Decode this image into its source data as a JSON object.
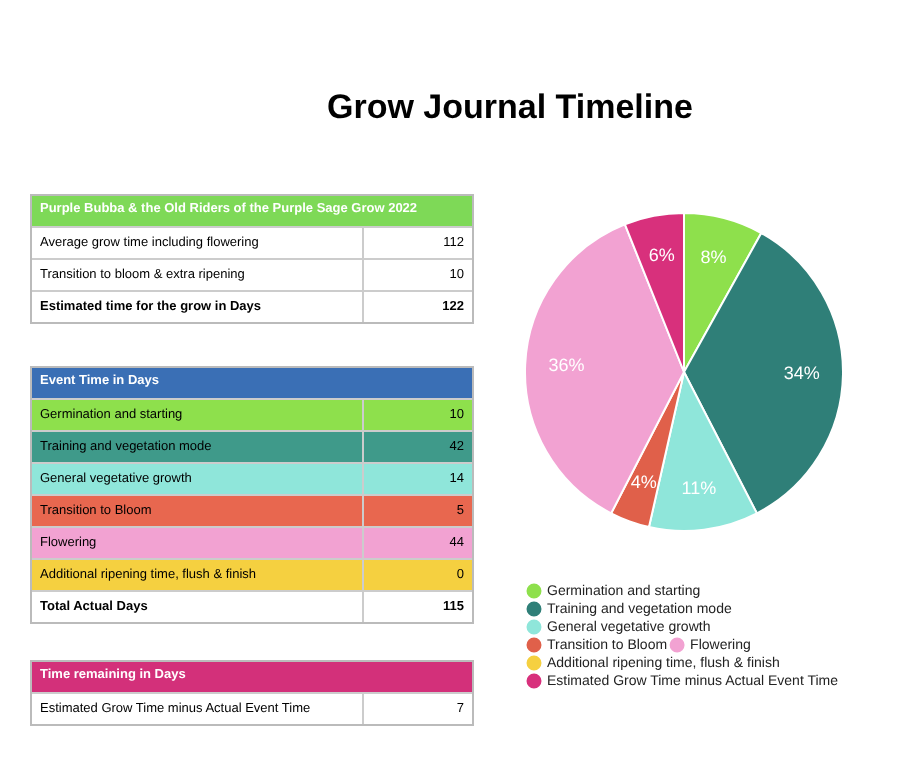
{
  "chart_data": [
    {
      "type": "pie",
      "title": "Grow Journal Timeline",
      "categories": [
        "Germination and starting",
        "Training and vegetation mode",
        "General vegetative growth",
        "Transition to Bloom",
        "Flowering",
        "Additional ripening time, flush & finish",
        "Estimated Grow Time minus Actual Event Time"
      ],
      "values": [
        8,
        34,
        11,
        4,
        36,
        0,
        6
      ],
      "colors": [
        "#8ee04c",
        "#2f7f78",
        "#8fe6da",
        "#e0604a",
        "#f2a2d2",
        "#f5d040",
        "#d8307c"
      ],
      "value_labels": [
        "8%",
        "34%",
        "11%",
        "4%",
        "36%",
        null,
        "6%"
      ],
      "legend": "bottom"
    },
    {
      "type": "other",
      "title": "Purple Bubba & the Old Riders of the Purple Sage Grow 2022",
      "color": "#7ed957",
      "categories": [
        "Average grow time including flowering",
        "Transition to bloom & extra ripening",
        "Estimated time for the grow in Days"
      ],
      "values": [
        112,
        10,
        122
      ],
      "data_labels": true,
      "colors": [
        "#ffffff",
        "#ffffff",
        "#ffffff"
      ]
    },
    {
      "type": "other",
      "title": "Event Time in Days",
      "color": "#3a6fb5",
      "categories": [
        "Germination and starting",
        "Training and vegetation mode",
        "General vegetative growth",
        "Transition to Bloom",
        "Flowering",
        "Additional ripening time, flush & finish",
        "Total Actual Days"
      ],
      "values": [
        10,
        42,
        14,
        5,
        44,
        0,
        115
      ],
      "data_labels": true,
      "colors": [
        "#8ee04c",
        "#3f9a8a",
        "#8fe6da",
        "#e8674f",
        "#f2a2d2",
        "#f5d040",
        "#ffffff"
      ]
    },
    {
      "type": "other",
      "title": "Time remaining in Days",
      "color": "#d3307a",
      "categories": [
        "Estimated Grow Time minus Actual Event Time"
      ],
      "values": [
        7
      ],
      "data_labels": true,
      "colors": [
        "#ffffff"
      ]
    }
  ]
}
